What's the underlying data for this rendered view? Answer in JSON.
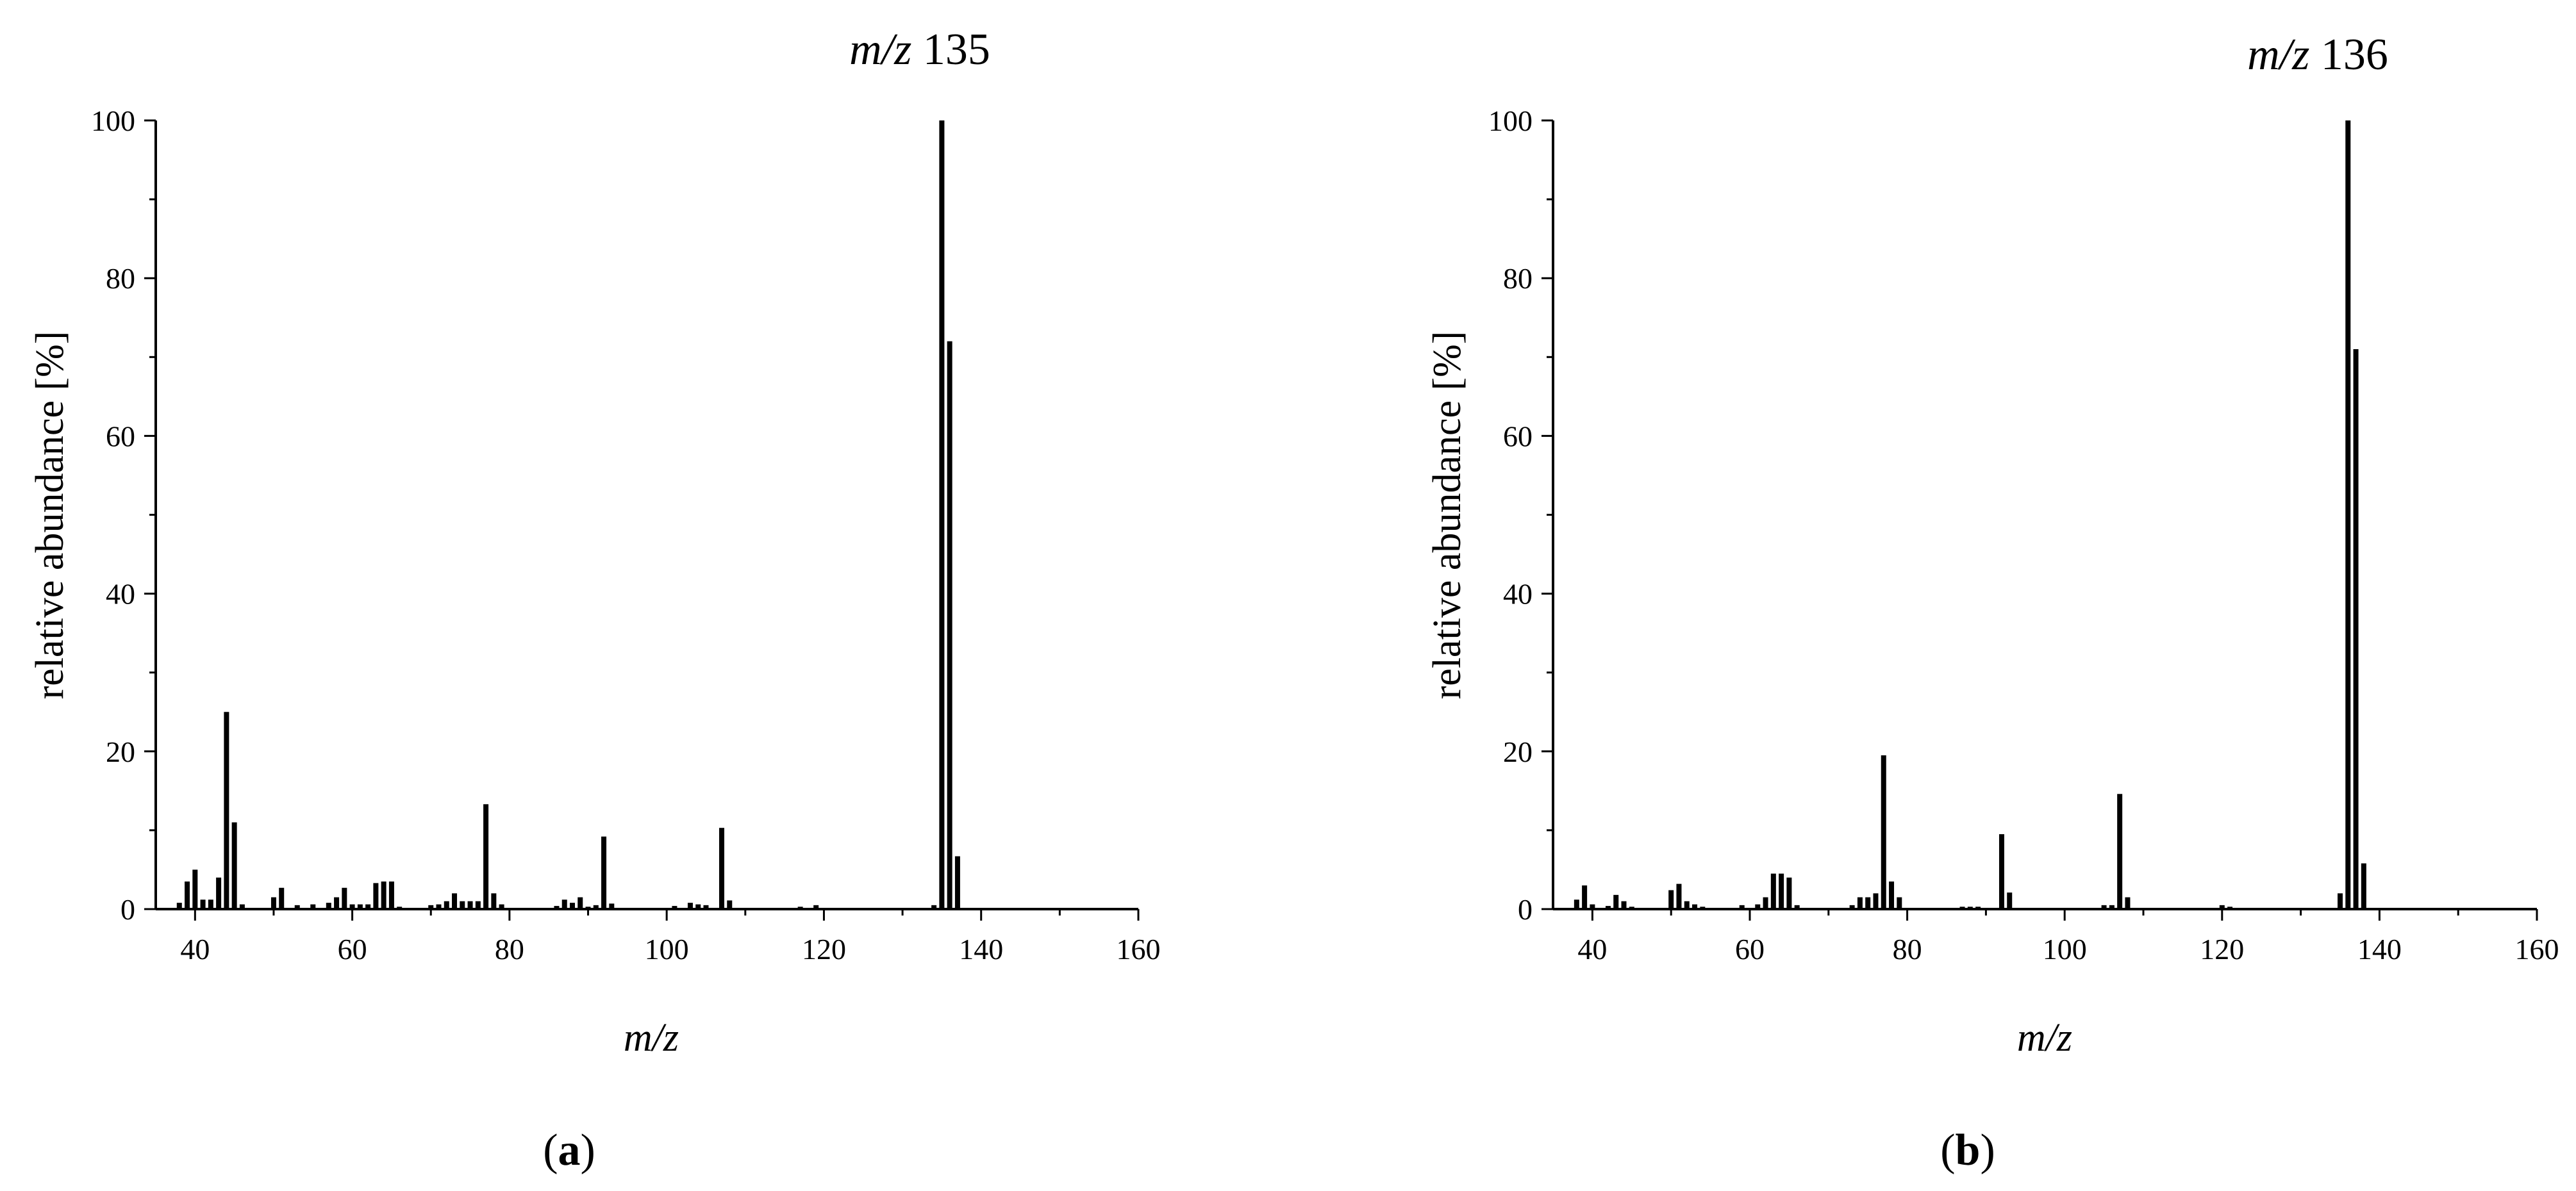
{
  "chart_data": [
    {
      "type": "bar",
      "title_parts": {
        "italic": "m/z",
        "text": " 135"
      },
      "xlabel": "m/z",
      "ylabel": "relative abundance [%]",
      "xlim": [
        35,
        160
      ],
      "ylim": [
        0,
        100
      ],
      "x_ticks": [
        40,
        60,
        80,
        100,
        120,
        140,
        160
      ],
      "y_ticks": [
        0,
        20,
        40,
        60,
        80,
        100
      ],
      "panel_label": {
        "open": "(",
        "letter": "a",
        "close": ")"
      },
      "x": [
        38,
        39,
        40,
        41,
        42,
        43,
        44,
        45,
        46,
        50,
        51,
        53,
        55,
        57,
        58,
        59,
        60,
        61,
        62,
        63,
        64,
        65,
        66,
        70,
        71,
        72,
        73,
        74,
        75,
        76,
        77,
        78,
        79,
        86,
        87,
        88,
        89,
        90,
        91,
        92,
        93,
        101,
        103,
        104,
        105,
        107,
        108,
        117,
        119,
        134,
        135,
        136,
        137
      ],
      "values": [
        0.8,
        3.5,
        5,
        1.2,
        1.2,
        4,
        25,
        11,
        0.6,
        1.5,
        2.7,
        0.5,
        0.6,
        0.8,
        1.5,
        2.7,
        0.6,
        0.6,
        0.6,
        3.3,
        3.5,
        3.5,
        0.3,
        0.5,
        0.6,
        1,
        2,
        1,
        1,
        1,
        13.3,
        2,
        0.6,
        0.4,
        1.2,
        0.8,
        1.5,
        0.3,
        0.5,
        9.2,
        0.7,
        0.4,
        0.8,
        0.6,
        0.5,
        10.3,
        1.1,
        0.3,
        0.5,
        0.5,
        100,
        72,
        6.7
      ]
    },
    {
      "type": "bar",
      "title_parts": {
        "italic": "m/z",
        "text": " 136"
      },
      "xlabel": "m/z",
      "ylabel": "relative abundance [%]",
      "xlim": [
        35,
        160
      ],
      "ylim": [
        0,
        100
      ],
      "x_ticks": [
        40,
        60,
        80,
        100,
        120,
        140,
        160
      ],
      "y_ticks": [
        0,
        20,
        40,
        60,
        80,
        100
      ],
      "panel_label": {
        "open": "(",
        "letter": "b",
        "close": ")"
      },
      "x": [
        38,
        39,
        40,
        42,
        43,
        44,
        45,
        50,
        51,
        52,
        53,
        54,
        59,
        61,
        62,
        63,
        64,
        65,
        66,
        73,
        74,
        75,
        76,
        77,
        78,
        79,
        87,
        88,
        89,
        92,
        93,
        105,
        106,
        107,
        108,
        120,
        121,
        135,
        136,
        137,
        138
      ],
      "values": [
        1.2,
        3,
        0.6,
        0.4,
        1.8,
        1,
        0.3,
        2.4,
        3.2,
        1,
        0.6,
        0.3,
        0.5,
        0.6,
        1.5,
        4.5,
        4.5,
        4,
        0.5,
        0.5,
        1.5,
        1.5,
        2,
        19.5,
        3.5,
        1.5,
        0.3,
        0.3,
        0.3,
        9.5,
        2.1,
        0.5,
        0.5,
        14.6,
        1.5,
        0.5,
        0.3,
        2,
        100,
        71,
        5.8
      ]
    }
  ]
}
